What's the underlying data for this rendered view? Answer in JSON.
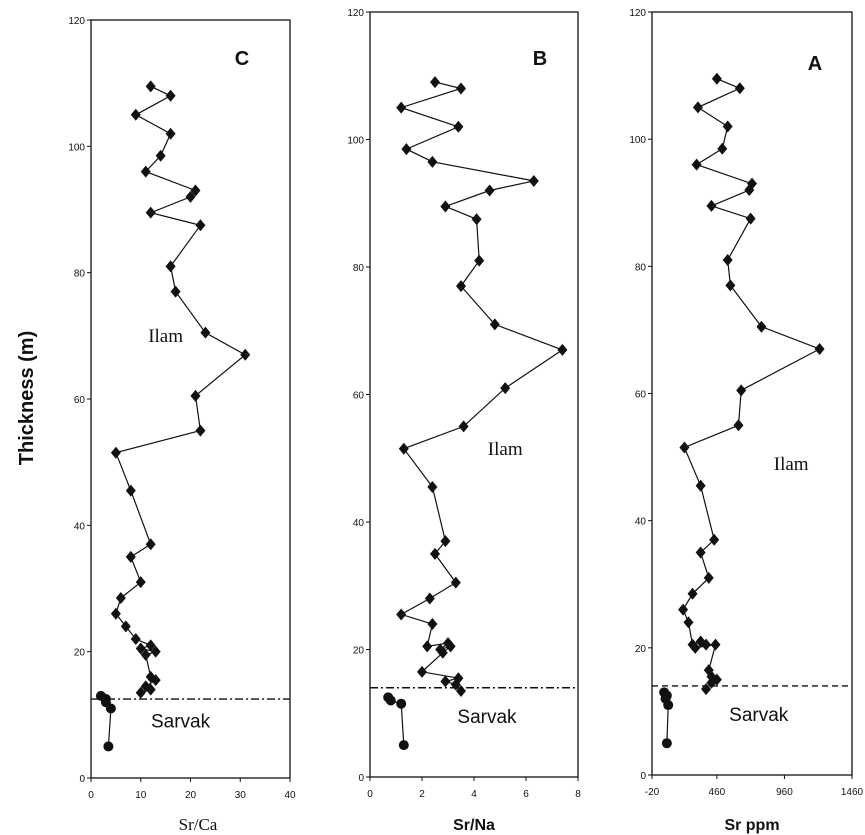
{
  "figure": {
    "ylabel": "Thickness (m)"
  },
  "chart_data": [
    {
      "type": "line",
      "panel_letter": "C",
      "xlabel": "Sr/Ca",
      "xlim": [
        0,
        40
      ],
      "xticks": [
        "0",
        "10",
        "20",
        "30",
        "40"
      ],
      "ylim": [
        0,
        120
      ],
      "yticks": [
        "0",
        "20",
        "40",
        "60",
        "80",
        "100",
        "120"
      ],
      "units": [
        "Ilam",
        "Sarvak"
      ],
      "boundary_y": 12.5,
      "boundary_style": "dash-dot",
      "ilam_label_pos": [
        15,
        69
      ],
      "sarvak_label_pos": [
        18,
        8
      ],
      "series": [
        {
          "marker": "diamond",
          "x": [
            12,
            16,
            9,
            16,
            14,
            11,
            21,
            20,
            12,
            22,
            16,
            17,
            23,
            31,
            21,
            22,
            5,
            8,
            12,
            8,
            10,
            6,
            5,
            7,
            9,
            12,
            10,
            13,
            11,
            12,
            13,
            11,
            12,
            10
          ],
          "y": [
            109.5,
            108,
            105,
            102,
            98.5,
            96,
            93,
            92,
            89.5,
            87.5,
            81,
            77,
            70.5,
            67,
            60.5,
            55,
            51.5,
            45.5,
            37,
            35,
            31,
            28.5,
            26,
            24,
            22,
            21,
            20.5,
            20,
            19.5,
            16,
            15.5,
            14.5,
            14,
            13.5
          ]
        },
        {
          "marker": "circle",
          "x": [
            2,
            3,
            3,
            4,
            3.5
          ],
          "y": [
            13,
            12.5,
            12,
            11,
            5
          ]
        }
      ]
    },
    {
      "type": "line",
      "panel_letter": "B",
      "xlabel": "Sr/Na",
      "xlim": [
        0,
        8
      ],
      "xticks": [
        "0",
        "2",
        "4",
        "6",
        "8"
      ],
      "ylim": [
        0,
        120
      ],
      "yticks": [
        "0",
        "20",
        "40",
        "60",
        "80",
        "100",
        "120"
      ],
      "units": [
        "Ilam",
        "Sarvak"
      ],
      "boundary_y": 14,
      "boundary_style": "dash-dot",
      "ilam_label_pos": [
        5.2,
        50.5
      ],
      "sarvak_label_pos": [
        4.5,
        8.5
      ],
      "series": [
        {
          "marker": "diamond",
          "x": [
            2.5,
            3.5,
            1.2,
            3.4,
            1.4,
            2.4,
            6.3,
            4.6,
            2.9,
            4.1,
            4.2,
            3.5,
            4.8,
            7.4,
            5.2,
            3.6,
            1.3,
            2.4,
            2.9,
            2.5,
            3.3,
            2.3,
            1.2,
            2.4,
            2.2,
            3.0,
            2.7,
            3.1,
            2.8,
            2.0,
            3.4,
            2.9,
            3.3,
            3.5
          ],
          "y": [
            109,
            108,
            105,
            102,
            98.5,
            96.5,
            93.5,
            92,
            89.5,
            87.5,
            81,
            77,
            71,
            67,
            61,
            55,
            51.5,
            45.5,
            37,
            35,
            30.5,
            28,
            25.5,
            24,
            20.5,
            21,
            20,
            20.5,
            19.5,
            16.5,
            15.5,
            15,
            14.5,
            13.5
          ]
        },
        {
          "marker": "circle",
          "x": [
            0.7,
            0.8,
            1.2,
            1.3
          ],
          "y": [
            12.5,
            12,
            11.5,
            5
          ]
        }
      ]
    },
    {
      "type": "line",
      "panel_letter": "A",
      "xlabel": "Sr ppm",
      "xlim": [
        -20,
        1460
      ],
      "xticks": [
        "-20",
        "460",
        "960",
        "1460"
      ],
      "ylim": [
        0,
        120
      ],
      "yticks": [
        "0",
        "20",
        "40",
        "60",
        "80",
        "100",
        "120"
      ],
      "units": [
        "Ilam",
        "Sarvak"
      ],
      "boundary_y": 14,
      "boundary_style": "dashed",
      "ilam_label_pos": [
        1010,
        48
      ],
      "sarvak_label_pos": [
        770,
        8.5
      ],
      "series": [
        {
          "marker": "diamond",
          "x": [
            460,
            630,
            320,
            540,
            500,
            310,
            720,
            700,
            420,
            710,
            540,
            560,
            790,
            1220,
            640,
            620,
            220,
            340,
            440,
            340,
            400,
            280,
            210,
            250,
            280,
            340,
            380,
            300,
            450,
            400,
            420,
            460,
            420,
            380
          ],
          "y": [
            109.5,
            108,
            105,
            102,
            98.5,
            96,
            93,
            92,
            89.5,
            87.5,
            81,
            77,
            70.5,
            67,
            60.5,
            55,
            51.5,
            45.5,
            37,
            35,
            31,
            28.5,
            26,
            24,
            20.5,
            21,
            20.5,
            20,
            20.5,
            16.5,
            15.5,
            15,
            14.5,
            13.5
          ]
        },
        {
          "marker": "circle",
          "x": [
            70,
            90,
            80,
            100,
            90
          ],
          "y": [
            13,
            12.5,
            12,
            11,
            5
          ]
        }
      ]
    }
  ]
}
